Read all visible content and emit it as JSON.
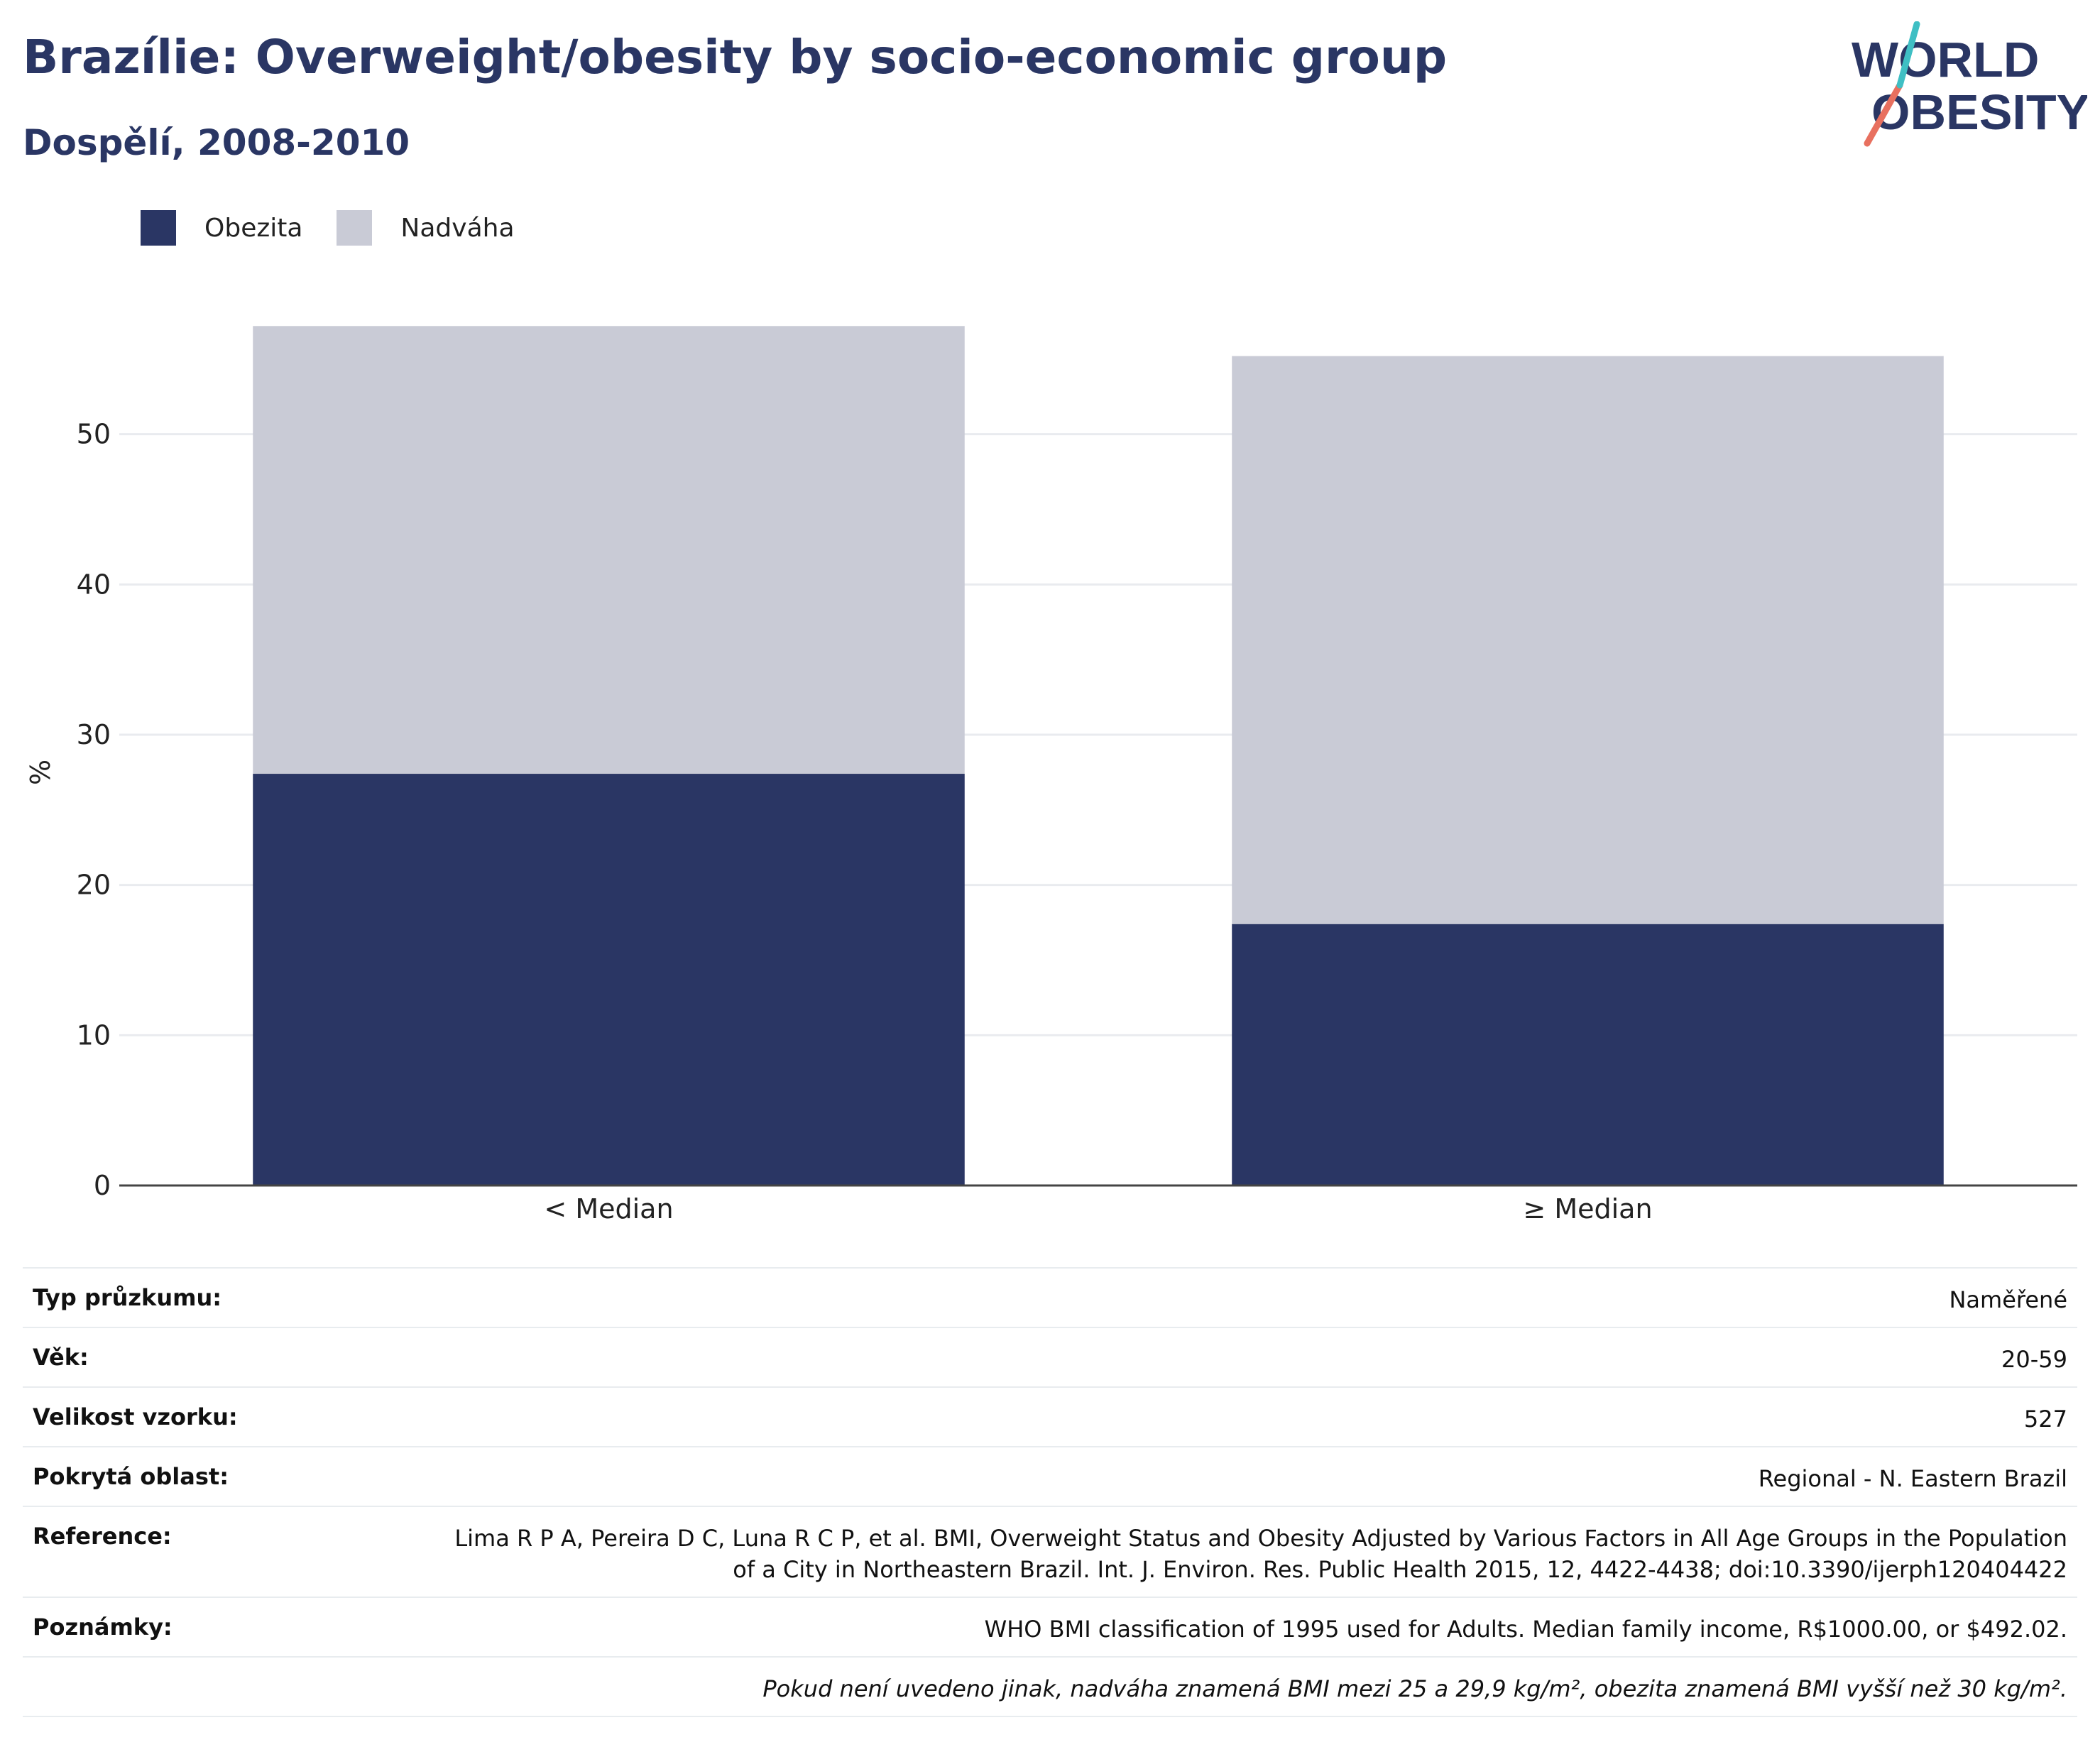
{
  "header": {
    "title": "Brazílie: Overweight/obesity by socio-economic group",
    "subtitle": "Dospělí, 2008-2010"
  },
  "logo": {
    "line1": "WORLD",
    "line2": "OBESITY"
  },
  "legend": [
    {
      "label": "Obezita",
      "color": "#2a3664"
    },
    {
      "label": "Nadváha",
      "color": "#c9cbd6"
    }
  ],
  "chart_data": {
    "type": "bar",
    "stacked": true,
    "categories": [
      "< Median",
      "≥ Median"
    ],
    "series": [
      {
        "name": "Obezita",
        "values": [
          27.4,
          17.4
        ],
        "color": "#2a3664"
      },
      {
        "name": "Nadváha",
        "values": [
          29.8,
          37.8
        ],
        "color": "#c9cbd6"
      }
    ],
    "ylabel": "%",
    "yticks": [
      0,
      10,
      20,
      30,
      40,
      50
    ],
    "ylim": [
      0,
      60
    ],
    "grid": true
  },
  "info": {
    "rows": [
      {
        "label": "Typ průzkumu:",
        "value": "Naměřené"
      },
      {
        "label": "Věk:",
        "value": "20-59"
      },
      {
        "label": "Velikost vzorku:",
        "value": "527"
      },
      {
        "label": "Pokrytá oblast:",
        "value": "Regional - N. Eastern Brazil"
      },
      {
        "label": "Reference:",
        "value": "Lima R P A, Pereira D C, Luna R C P, et al. BMI, Overweight Status and Obesity Adjusted by Various Factors in All Age Groups in the Population of a City in Northeastern Brazil. Int. J. Environ. Res. Public Health 2015, 12, 4422-4438; doi:10.3390/ijerph120404422"
      },
      {
        "label": "Poznámky:",
        "value": "WHO BMI classification of 1995 used for Adults. Median family income, R$1000.00, or $492.02."
      }
    ],
    "footnote": "Pokud není uvedeno jinak, nadváha znamená BMI mezi 25 a 29,9 kg/m², obezita znamená BMI vyšší než 30 kg/m²."
  }
}
